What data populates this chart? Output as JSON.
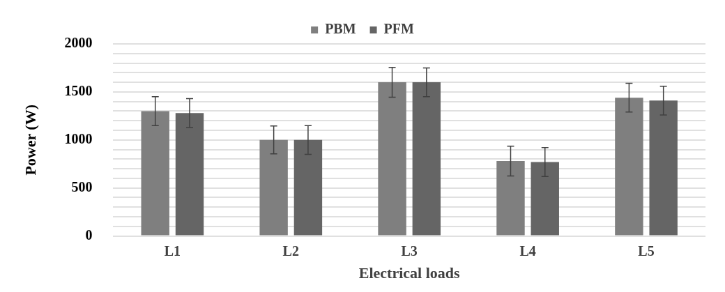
{
  "chart_data": {
    "type": "bar",
    "xlabel": "Electrical loads",
    "ylabel": "Power (W)",
    "categories": [
      "L1",
      "L2",
      "L3",
      "L4",
      "L5"
    ],
    "series": [
      {
        "name": "PBM",
        "color": "#7f7f7f",
        "values": [
          1300,
          1000,
          1600,
          780,
          1440
        ],
        "errors": [
          150,
          145,
          155,
          155,
          150
        ]
      },
      {
        "name": "PFM",
        "color": "#656565",
        "values": [
          1280,
          1000,
          1600,
          770,
          1410
        ],
        "errors": [
          150,
          150,
          150,
          150,
          150
        ]
      }
    ],
    "ylim": [
      0,
      2000
    ],
    "yticks": [
      0,
      {
        "value": 100,
        "label": null
      },
      {
        "value": 200,
        "label": null
      },
      {
        "value": 300,
        "label": null
      },
      {
        "value": 400,
        "label": null
      },
      500,
      {
        "value": 600,
        "label": null
      },
      {
        "value": 700,
        "label": null
      },
      {
        "value": 800,
        "label": null
      },
      {
        "value": 900,
        "label": null
      },
      1000,
      {
        "value": 1100,
        "label": null
      },
      {
        "value": 1200,
        "label": null
      },
      {
        "value": 1300,
        "label": null
      },
      {
        "value": 1400,
        "label": null
      },
      1500,
      {
        "value": 1600,
        "label": null
      },
      {
        "value": 1700,
        "label": null
      },
      {
        "value": 1800,
        "label": null
      },
      {
        "value": 1900,
        "label": null
      },
      2000
    ],
    "grid": "y",
    "legend": "top"
  }
}
